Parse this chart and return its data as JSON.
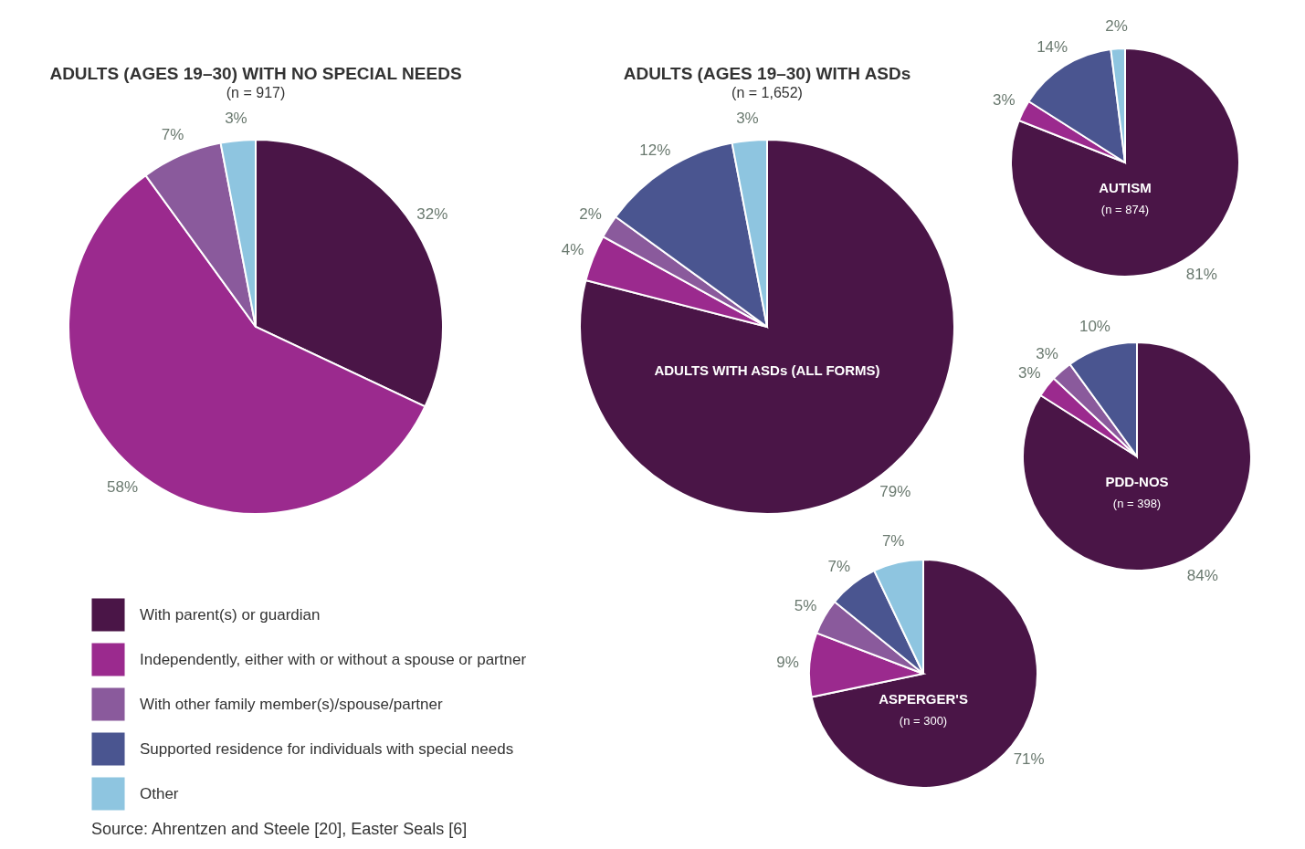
{
  "chart_data": [
    {
      "type": "pie",
      "title": "ADULTS (AGES 19–30) WITH NO SPECIAL NEEDS",
      "subtitle": "(n = 917)",
      "categories": [
        null,
        null,
        null,
        null
      ],
      "values": [
        32,
        58,
        7,
        3
      ],
      "colors": [
        "#4a1547",
        "#9b2a8e",
        "#8a5a9c",
        "#8ec5e0"
      ],
      "value_labels": [
        "32%",
        "58%",
        "7%",
        "3%"
      ],
      "annotations": [
        "Source: Ahrentzen and Steele [20], Easter Seals [6]"
      ]
    },
    {
      "type": "pie",
      "title": "ADULTS (AGES 19–30) WITH ASDs",
      "subtitle": "(n = 1,652)",
      "categories": [
        "With parent(s) or guardian",
        "Independently, either with or without a spouse or partner",
        "With other family member(s)/spouse/partner",
        "Supported residence for individuals with special needs",
        "Other"
      ],
      "values": [
        79,
        4,
        2,
        12,
        3
      ],
      "colors": [
        "#4a1547",
        "#9b2a8e",
        "#8a5a9c",
        "#4a5590",
        "#8ec5e0"
      ],
      "value_labels": [
        "79%",
        "4%",
        "2%",
        "12%",
        "3%"
      ],
      "legend": "bottom left",
      "annotations": [
        "ADULTS WITH ASDs (ALL FORMS)"
      ]
    },
    {
      "type": "pie",
      "categories": [
        null,
        null,
        null,
        null
      ],
      "values": [
        81,
        3,
        14,
        2
      ],
      "colors": [
        "#4a1547",
        "#9b2a8e",
        "#4a5590",
        "#8ec5e0"
      ],
      "value_labels": [
        "81%",
        "3%",
        "14%",
        "2%"
      ],
      "annotations": [
        "AUTISM",
        "(n = 874)"
      ]
    },
    {
      "type": "pie",
      "categories": [
        null,
        null,
        null,
        null
      ],
      "values": [
        84,
        3,
        3,
        10
      ],
      "colors": [
        "#4a1547",
        "#9b2a8e",
        "#8a5a9c",
        "#4a5590"
      ],
      "value_labels": [
        "84%",
        "3%",
        "3%",
        "10%"
      ],
      "annotations": [
        "PDD-NOS",
        "(n = 398)"
      ]
    },
    {
      "type": "pie",
      "categories": [
        null,
        null,
        null,
        null,
        null
      ],
      "values": [
        71,
        9,
        5,
        7,
        7
      ],
      "colors": [
        "#4a1547",
        "#9b2a8e",
        "#8a5a9c",
        "#4a5590",
        "#8ec5e0"
      ],
      "value_labels": [
        "71%",
        "9%",
        "5%",
        "7%",
        "7%"
      ],
      "annotations": [
        "ASPERGER'S",
        "(n = 300)"
      ]
    }
  ]
}
